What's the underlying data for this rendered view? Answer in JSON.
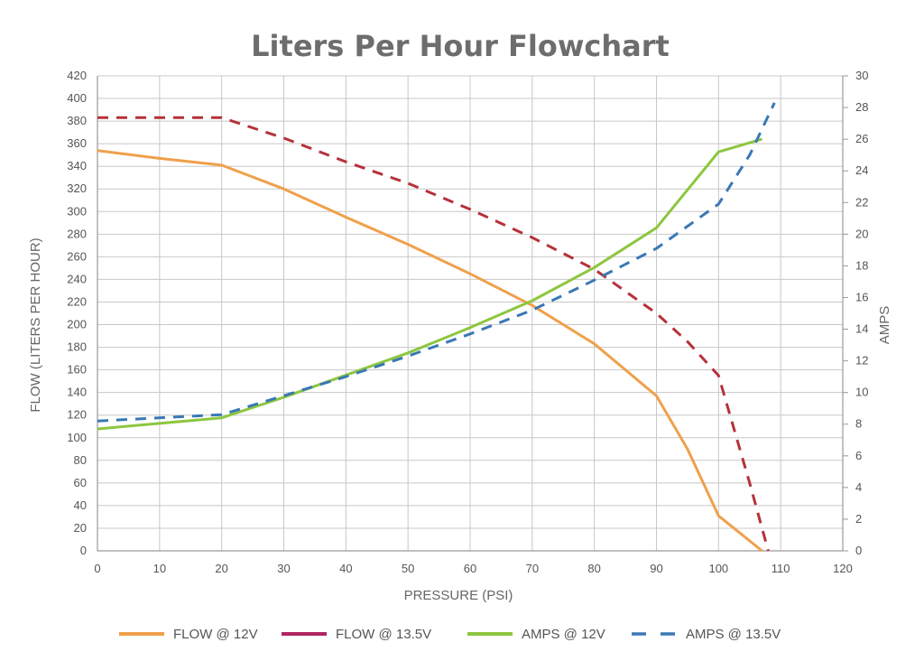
{
  "chart_data": {
    "type": "line",
    "title": "Liters Per Hour Flowchart",
    "xlabel": "PRESSURE (PSI)",
    "ylabel": "FLOW (LITERS PER HOUR)",
    "y2label": "AMPS",
    "xlim": [
      0,
      120
    ],
    "ylim": [
      0,
      420
    ],
    "y2lim": [
      0,
      30
    ],
    "x_ticks": [
      0,
      10,
      20,
      30,
      40,
      50,
      60,
      70,
      80,
      90,
      100,
      110,
      120
    ],
    "y_ticks": [
      0,
      20,
      40,
      60,
      80,
      100,
      120,
      140,
      160,
      180,
      200,
      220,
      240,
      260,
      280,
      300,
      320,
      340,
      360,
      380,
      400,
      420
    ],
    "y2_ticks": [
      0,
      2,
      4,
      6,
      8,
      10,
      12,
      14,
      16,
      18,
      20,
      22,
      24,
      26,
      28,
      30
    ],
    "grid": true,
    "legend_position": "bottom",
    "series": [
      {
        "name": "FLOW @ 12V",
        "axis": "left",
        "color": "#f0a04b",
        "dash": "solid",
        "points": [
          [
            0,
            354
          ],
          [
            10,
            347
          ],
          [
            20,
            341
          ],
          [
            30,
            320
          ],
          [
            40,
            295
          ],
          [
            50,
            271
          ],
          [
            60,
            245
          ],
          [
            70,
            217
          ],
          [
            80,
            183
          ],
          [
            90,
            137
          ],
          [
            95,
            90
          ],
          [
            100,
            31
          ],
          [
            107,
            0
          ]
        ]
      },
      {
        "name": "FLOW @ 13.5V",
        "axis": "left",
        "color": "#b5313a",
        "legend_color": "#b0265f",
        "dash": "dashed",
        "points": [
          [
            0,
            383
          ],
          [
            10,
            383
          ],
          [
            20,
            383
          ],
          [
            30,
            365
          ],
          [
            40,
            344
          ],
          [
            50,
            325
          ],
          [
            60,
            302
          ],
          [
            70,
            277
          ],
          [
            80,
            249
          ],
          [
            90,
            210
          ],
          [
            95,
            185
          ],
          [
            100,
            155
          ],
          [
            105,
            60
          ],
          [
            108,
            0
          ]
        ]
      },
      {
        "name": "AMPS @ 12V",
        "axis": "right",
        "color": "#8dc63f",
        "dash": "solid",
        "points": [
          [
            0,
            7.7
          ],
          [
            20,
            8.4
          ],
          [
            30,
            9.7
          ],
          [
            40,
            11.1
          ],
          [
            50,
            12.5
          ],
          [
            60,
            14.1
          ],
          [
            70,
            15.8
          ],
          [
            80,
            17.9
          ],
          [
            90,
            20.4
          ],
          [
            100,
            25.2
          ],
          [
            107,
            26.0
          ]
        ]
      },
      {
        "name": "AMPS @ 13.5V",
        "axis": "right",
        "color": "#3a78b5",
        "dash": "dashed",
        "points": [
          [
            0,
            8.2
          ],
          [
            20,
            8.6
          ],
          [
            30,
            9.8
          ],
          [
            40,
            11.0
          ],
          [
            50,
            12.3
          ],
          [
            60,
            13.7
          ],
          [
            70,
            15.2
          ],
          [
            80,
            17.1
          ],
          [
            90,
            19.1
          ],
          [
            100,
            21.9
          ],
          [
            105,
            25.0
          ],
          [
            109,
            28.3
          ]
        ]
      }
    ]
  }
}
